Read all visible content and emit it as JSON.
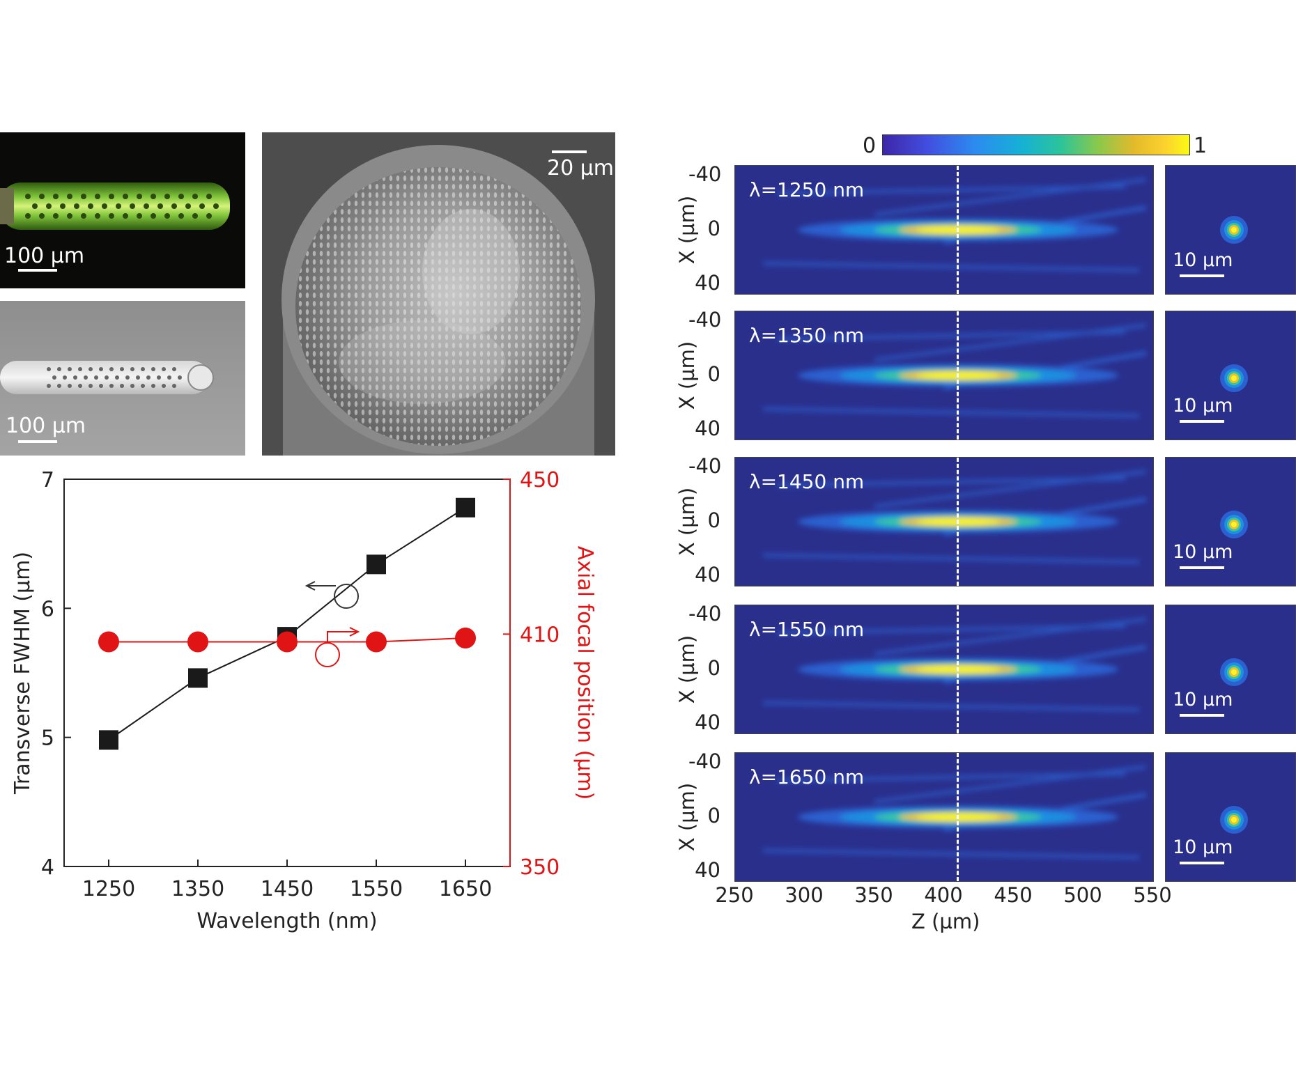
{
  "panels": {
    "fluorescence": {
      "scale_label": "100 µm"
    },
    "optical": {
      "scale_label": "100 µm"
    },
    "sem": {
      "scale_label": "20 µm"
    }
  },
  "colorbar": {
    "min_label": "0",
    "max_label": "1"
  },
  "maps": [
    {
      "label": "λ=1250 nm",
      "spot_scale": "10 µm"
    },
    {
      "label": "λ=1350 nm",
      "spot_scale": "10 µm"
    },
    {
      "label": "λ=1450 nm",
      "spot_scale": "10 µm"
    },
    {
      "label": "λ=1550 nm",
      "spot_scale": "10 µm"
    },
    {
      "label": "λ=1650 nm",
      "spot_scale": "10 µm"
    }
  ],
  "map_axes": {
    "ylabel": "X (µm)",
    "yticks": [
      "-40",
      "0",
      "40"
    ],
    "xlabel": "Z (µm)",
    "xticks": [
      "250",
      "300",
      "350",
      "400",
      "450",
      "500",
      "550"
    ]
  },
  "chart_data": {
    "type": "scatter",
    "xlabel": "Wavelength (nm)",
    "ylabel": "Transverse FWHM (µm)",
    "y2label": "Axial focal position (µm)",
    "x_ticks": [
      1250,
      1350,
      1450,
      1550,
      1650
    ],
    "xlim": [
      1200,
      1700
    ],
    "ylim": [
      4,
      7
    ],
    "y_ticks": [
      4,
      5,
      6,
      7
    ],
    "y2lim": [
      350,
      450
    ],
    "y2_ticks": [
      350,
      410,
      450
    ],
    "series": [
      {
        "name": "Transverse FWHM",
        "axis": "left",
        "color": "#1a1a1a",
        "marker": "square",
        "x": [
          1250,
          1350,
          1450,
          1550,
          1650
        ],
        "y": [
          4.98,
          5.46,
          5.78,
          6.34,
          6.78
        ]
      },
      {
        "name": "Axial focal position",
        "axis": "right",
        "color": "#e01414",
        "marker": "circle",
        "x": [
          1250,
          1350,
          1450,
          1550,
          1650
        ],
        "y": [
          408,
          408,
          408,
          408,
          409
        ]
      }
    ]
  }
}
